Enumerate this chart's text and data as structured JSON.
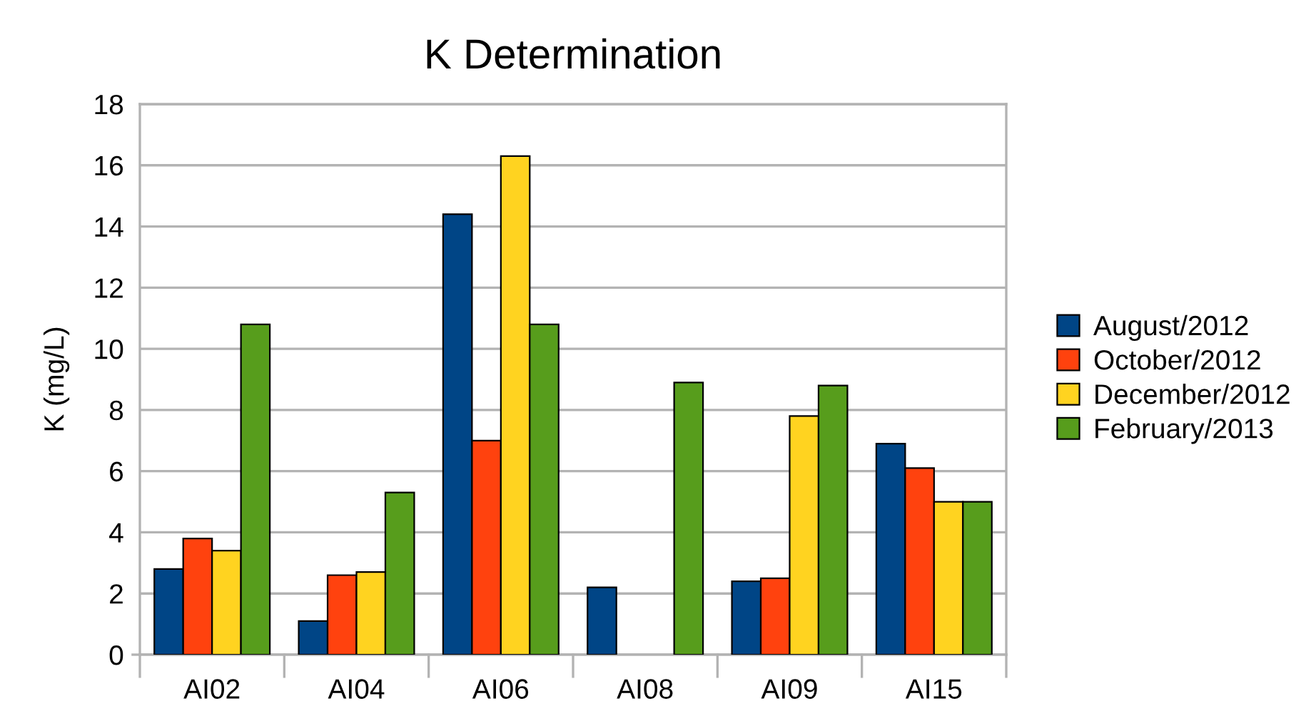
{
  "chart_data": {
    "type": "bar",
    "title": "K Determination",
    "ylabel": "K (mg/L)",
    "categories": [
      "AI02",
      "AI04",
      "AI06",
      "AI08",
      "AI09",
      "AI15"
    ],
    "series": [
      {
        "name": "August/2012",
        "color": "#004586",
        "values": [
          2.8,
          1.1,
          14.4,
          2.2,
          2.4,
          6.9
        ]
      },
      {
        "name": "October/2012",
        "color": "#ff420e",
        "values": [
          3.8,
          2.6,
          7.0,
          null,
          2.5,
          6.1
        ]
      },
      {
        "name": "December/2012",
        "color": "#ffd320",
        "values": [
          3.4,
          2.7,
          16.3,
          null,
          7.8,
          5.0
        ]
      },
      {
        "name": "February/2013",
        "color": "#579d1c",
        "values": [
          10.8,
          5.3,
          10.8,
          8.9,
          8.8,
          5.0
        ]
      }
    ],
    "ylim": [
      0,
      18
    ],
    "yticks": [
      0,
      2,
      4,
      6,
      8,
      10,
      12,
      14,
      16,
      18
    ],
    "grid": "y",
    "legend": "right"
  }
}
